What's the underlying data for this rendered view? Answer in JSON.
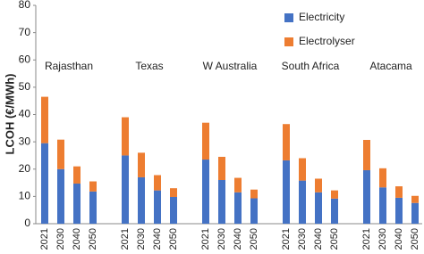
{
  "chart_data": {
    "type": "grouped-stacked-bar",
    "y_label": "LCOH (€/MWh)",
    "groups": [
      "Rajasthan",
      "Texas",
      "W Australia",
      "South Africa",
      "Atacama"
    ],
    "categories": [
      "2021",
      "2030",
      "2040",
      "2050",
      "2021",
      "2030",
      "2040",
      "2050",
      "2021",
      "2030",
      "2040",
      "2050",
      "2021",
      "2030",
      "2040",
      "2050",
      "2021",
      "2030",
      "2040",
      "2050"
    ],
    "series": [
      {
        "name": "Electricity",
        "color": "#4472c4",
        "values": [
          29.5,
          20,
          14.7,
          11.8,
          25,
          17,
          12.2,
          9.8,
          23.5,
          16,
          11.5,
          9.3,
          23.2,
          15.8,
          11.5,
          9.2,
          19.6,
          13.3,
          9.5,
          7.6
        ]
      },
      {
        "name": "Electrolyser",
        "color": "#ed7d31",
        "values": [
          17,
          10.8,
          6.3,
          3.7,
          14,
          9,
          5.6,
          3.2,
          13.5,
          8.5,
          5.3,
          3.2,
          13.3,
          8.2,
          5,
          3,
          11.1,
          7,
          4.2,
          2.6
        ]
      }
    ],
    "ylim": [
      0,
      80
    ],
    "yticks": [
      0,
      10,
      20,
      30,
      40,
      50,
      60,
      70,
      80
    ]
  }
}
